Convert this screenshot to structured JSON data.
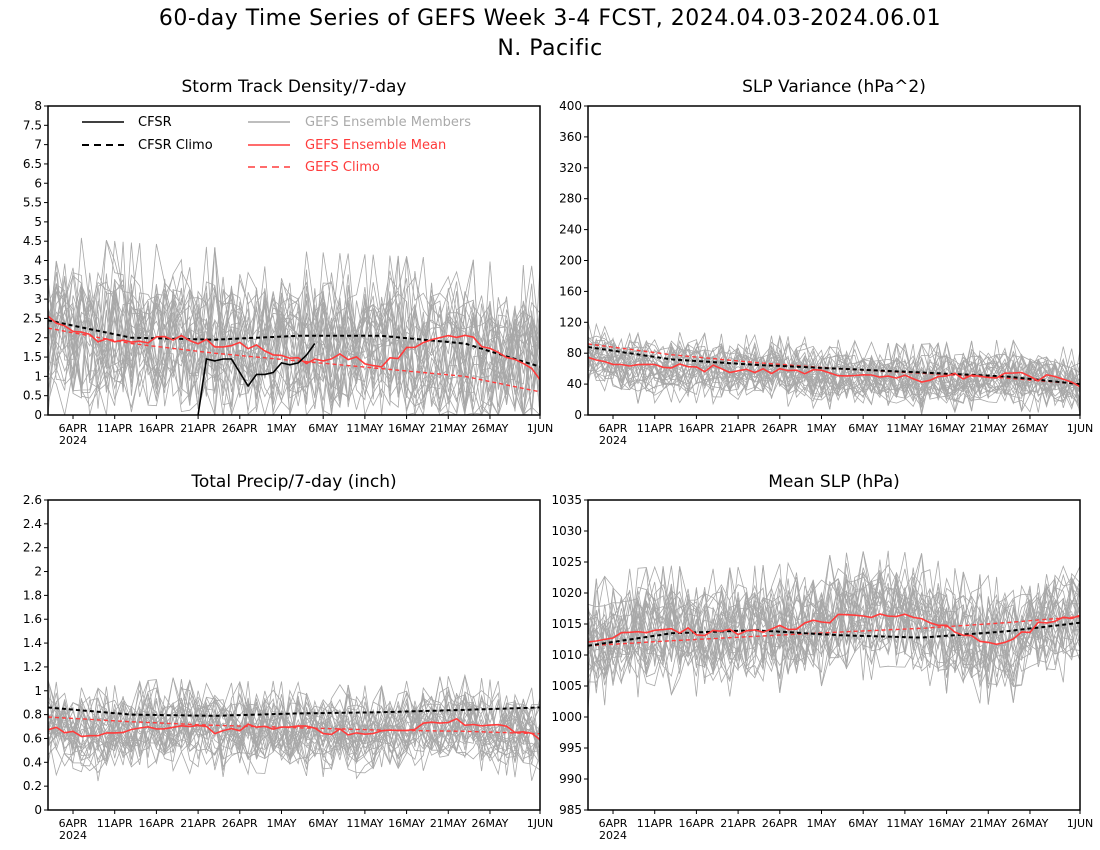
{
  "title_line1": "60-day Time Series of GEFS Week 3-4 FCST, 2024.04.03-2024.06.01",
  "title_line2": "N. Pacific",
  "colors": {
    "cfsr": "#000000",
    "cfsr_climo": "#000000",
    "members": "#a8a8a8",
    "ens_mean": "#ff3b3b",
    "gefs_climo": "#ff3b3b",
    "legend_members_text": "#aaaaaa"
  },
  "legend": {
    "cfsr": "CFSR",
    "cfsr_climo": "CFSR Climo",
    "members": "GEFS Ensemble Members",
    "ens_mean": "GEFS Ensemble Mean",
    "gefs_climo": "GEFS Climo"
  },
  "x_ticks": [
    "6APR",
    "11APR",
    "16APR",
    "21APR",
    "26APR",
    "1MAY",
    "6MAY",
    "11MAY",
    "16MAY",
    "21MAY",
    "26MAY",
    "1JUN"
  ],
  "x_year": "2024",
  "chart_data": [
    {
      "type": "line",
      "title": "Storm Track Density/7-day",
      "ylim": [
        0,
        8
      ],
      "yticks": [
        "0",
        "0.5",
        "1",
        "1.5",
        "2",
        "2.5",
        "3",
        "3.5",
        "4",
        "4.5",
        "5",
        "5.5",
        "6",
        "6.5",
        "7",
        "7.5",
        "8"
      ],
      "x_range": [
        "2024-04-03",
        "2024-06-01"
      ],
      "member_spread": {
        "low": 0.2,
        "high": 3.8,
        "max": 4.6
      },
      "cfsr": {
        "x": [
          "2024-04-21",
          "2024-04-22",
          "2024-04-23",
          "2024-04-24",
          "2024-04-25",
          "2024-04-26",
          "2024-04-27",
          "2024-04-28",
          "2024-04-29",
          "2024-04-30",
          "2024-05-01",
          "2024-05-02",
          "2024-05-03",
          "2024-05-04",
          "2024-05-05"
        ],
        "y": [
          0.0,
          1.45,
          1.4,
          1.45,
          1.45,
          1.1,
          0.75,
          1.05,
          1.05,
          1.1,
          1.35,
          1.3,
          1.35,
          1.55,
          1.85
        ]
      },
      "cfsr_climo": {
        "x": [
          "2024-04-03",
          "2024-04-13",
          "2024-04-23",
          "2024-05-03",
          "2024-05-13",
          "2024-05-23",
          "2024-06-01"
        ],
        "y": [
          2.45,
          2.0,
          1.95,
          2.05,
          2.05,
          1.85,
          1.25
        ]
      },
      "ens_mean": {
        "x": [
          "2024-04-03",
          "2024-04-08",
          "2024-04-13",
          "2024-04-18",
          "2024-04-23",
          "2024-04-28",
          "2024-05-03",
          "2024-05-08",
          "2024-05-13",
          "2024-05-18",
          "2024-05-23",
          "2024-05-28",
          "2024-06-01"
        ],
        "y": [
          2.5,
          2.0,
          1.9,
          2.0,
          1.85,
          1.8,
          1.4,
          1.5,
          1.3,
          1.9,
          2.1,
          1.5,
          1.0
        ]
      },
      "gefs_climo": {
        "x": [
          "2024-04-03",
          "2024-04-13",
          "2024-04-23",
          "2024-05-03",
          "2024-05-13",
          "2024-05-23",
          "2024-06-01"
        ],
        "y": [
          2.25,
          1.85,
          1.6,
          1.4,
          1.2,
          1.0,
          0.6
        ]
      }
    },
    {
      "type": "line",
      "title": "SLP Variance (hPa^2)",
      "ylim": [
        0,
        400
      ],
      "yticks": [
        "0",
        "40",
        "80",
        "120",
        "160",
        "200",
        "240",
        "280",
        "320",
        "360",
        "400"
      ],
      "x_range": [
        "2024-04-03",
        "2024-06-01"
      ],
      "member_spread": {
        "low": 30,
        "high": 100,
        "max": 170
      },
      "cfsr_climo": {
        "x": [
          "2024-04-03",
          "2024-04-13",
          "2024-04-23",
          "2024-05-03",
          "2024-05-13",
          "2024-05-23",
          "2024-06-01"
        ],
        "y": [
          88,
          72,
          65,
          60,
          55,
          50,
          40
        ]
      },
      "ens_mean": {
        "x": [
          "2024-04-03",
          "2024-04-08",
          "2024-04-13",
          "2024-04-18",
          "2024-04-23",
          "2024-04-28",
          "2024-05-03",
          "2024-05-08",
          "2024-05-13",
          "2024-05-18",
          "2024-05-23",
          "2024-05-28",
          "2024-06-01"
        ],
        "y": [
          75,
          60,
          62,
          60,
          58,
          56,
          52,
          48,
          46,
          50,
          52,
          48,
          38
        ]
      },
      "gefs_climo": {
        "x": [
          "2024-04-03",
          "2024-04-13",
          "2024-04-23",
          "2024-05-03",
          "2024-05-13",
          "2024-05-23",
          "2024-06-01"
        ],
        "y": [
          92,
          78,
          68,
          60,
          54,
          48,
          40
        ]
      }
    },
    {
      "type": "line",
      "title": "Total Precip/7-day (inch)",
      "ylim": [
        0,
        2.6
      ],
      "yticks": [
        "0",
        "0.2",
        "0.4",
        "0.6",
        "0.8",
        "1",
        "1.2",
        "1.4",
        "1.6",
        "1.8",
        "2",
        "2.2",
        "2.4",
        "2.6"
      ],
      "x_range": [
        "2024-04-03",
        "2024-06-01"
      ],
      "member_spread": {
        "low": 0.4,
        "high": 1.0,
        "max": 1.2
      },
      "cfsr_climo": {
        "x": [
          "2024-04-03",
          "2024-04-13",
          "2024-04-23",
          "2024-05-03",
          "2024-05-13",
          "2024-05-23",
          "2024-06-01"
        ],
        "y": [
          0.86,
          0.8,
          0.79,
          0.81,
          0.82,
          0.84,
          0.86
        ]
      },
      "ens_mean": {
        "x": [
          "2024-04-03",
          "2024-04-08",
          "2024-04-13",
          "2024-04-18",
          "2024-04-23",
          "2024-04-28",
          "2024-05-03",
          "2024-05-08",
          "2024-05-13",
          "2024-05-18",
          "2024-05-23",
          "2024-05-28",
          "2024-06-01"
        ],
        "y": [
          0.7,
          0.62,
          0.68,
          0.72,
          0.66,
          0.7,
          0.68,
          0.66,
          0.65,
          0.72,
          0.74,
          0.68,
          0.62
        ]
      },
      "gefs_climo": {
        "x": [
          "2024-04-03",
          "2024-04-13",
          "2024-04-23",
          "2024-05-03",
          "2024-05-13",
          "2024-05-23",
          "2024-06-01"
        ],
        "y": [
          0.78,
          0.74,
          0.71,
          0.69,
          0.67,
          0.66,
          0.64
        ]
      }
    },
    {
      "type": "line",
      "title": "Mean SLP (hPa)",
      "ylim": [
        985,
        1035
      ],
      "yticks": [
        "985",
        "990",
        "995",
        "1000",
        "1005",
        "1010",
        "1015",
        "1020",
        "1025",
        "1030",
        "1035"
      ],
      "x_range": [
        "2024-04-03",
        "2024-06-01"
      ],
      "member_spread": {
        "low": 1006,
        "high": 1022,
        "max": 1027
      },
      "cfsr_climo": {
        "x": [
          "2024-04-03",
          "2024-04-13",
          "2024-04-23",
          "2024-05-03",
          "2024-05-13",
          "2024-05-23",
          "2024-06-01"
        ],
        "y": [
          1011.5,
          1013.5,
          1014.0,
          1013.2,
          1012.8,
          1013.8,
          1015.2
        ]
      },
      "ens_mean": {
        "x": [
          "2024-04-03",
          "2024-04-08",
          "2024-04-13",
          "2024-04-18",
          "2024-04-23",
          "2024-04-28",
          "2024-05-03",
          "2024-05-08",
          "2024-05-13",
          "2024-05-18",
          "2024-05-23",
          "2024-05-28",
          "2024-06-01"
        ],
        "y": [
          1011.5,
          1013.5,
          1014.0,
          1013.5,
          1014.0,
          1014.5,
          1016.0,
          1016.5,
          1016.0,
          1013.0,
          1012.0,
          1015.5,
          1016.5
        ]
      },
      "gefs_climo": {
        "x": [
          "2024-04-03",
          "2024-04-13",
          "2024-04-23",
          "2024-05-03",
          "2024-05-13",
          "2024-05-23",
          "2024-06-01"
        ],
        "y": [
          1011.5,
          1012.3,
          1013.0,
          1013.7,
          1014.3,
          1015.2,
          1016.2
        ]
      }
    }
  ]
}
